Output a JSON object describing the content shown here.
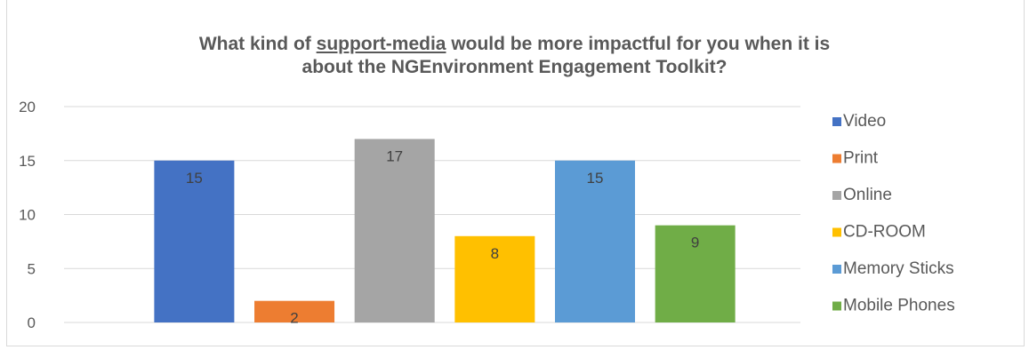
{
  "chart_data": {
    "type": "bar",
    "title_parts": {
      "line1_before": "What kind of ",
      "line1_underlined": "support-media",
      "line1_after": " would be more impactful for you when it is",
      "line2": "about the NGEnvironment Engagement Toolkit?"
    },
    "categories": [
      "Video",
      "Print",
      "Online",
      "CD-ROOM",
      "Memory Sticks",
      "Mobile Phones"
    ],
    "values": [
      15,
      2,
      17,
      8,
      15,
      9
    ],
    "colors": [
      "#4472c4",
      "#ed7d31",
      "#a5a5a5",
      "#ffc000",
      "#5b9bd5",
      "#70ad47"
    ],
    "yticks": [
      "0",
      "5",
      "10",
      "15",
      "20"
    ],
    "ylim": [
      0,
      20
    ],
    "grid": true,
    "legend": "right",
    "xlabel": "",
    "ylabel": ""
  }
}
